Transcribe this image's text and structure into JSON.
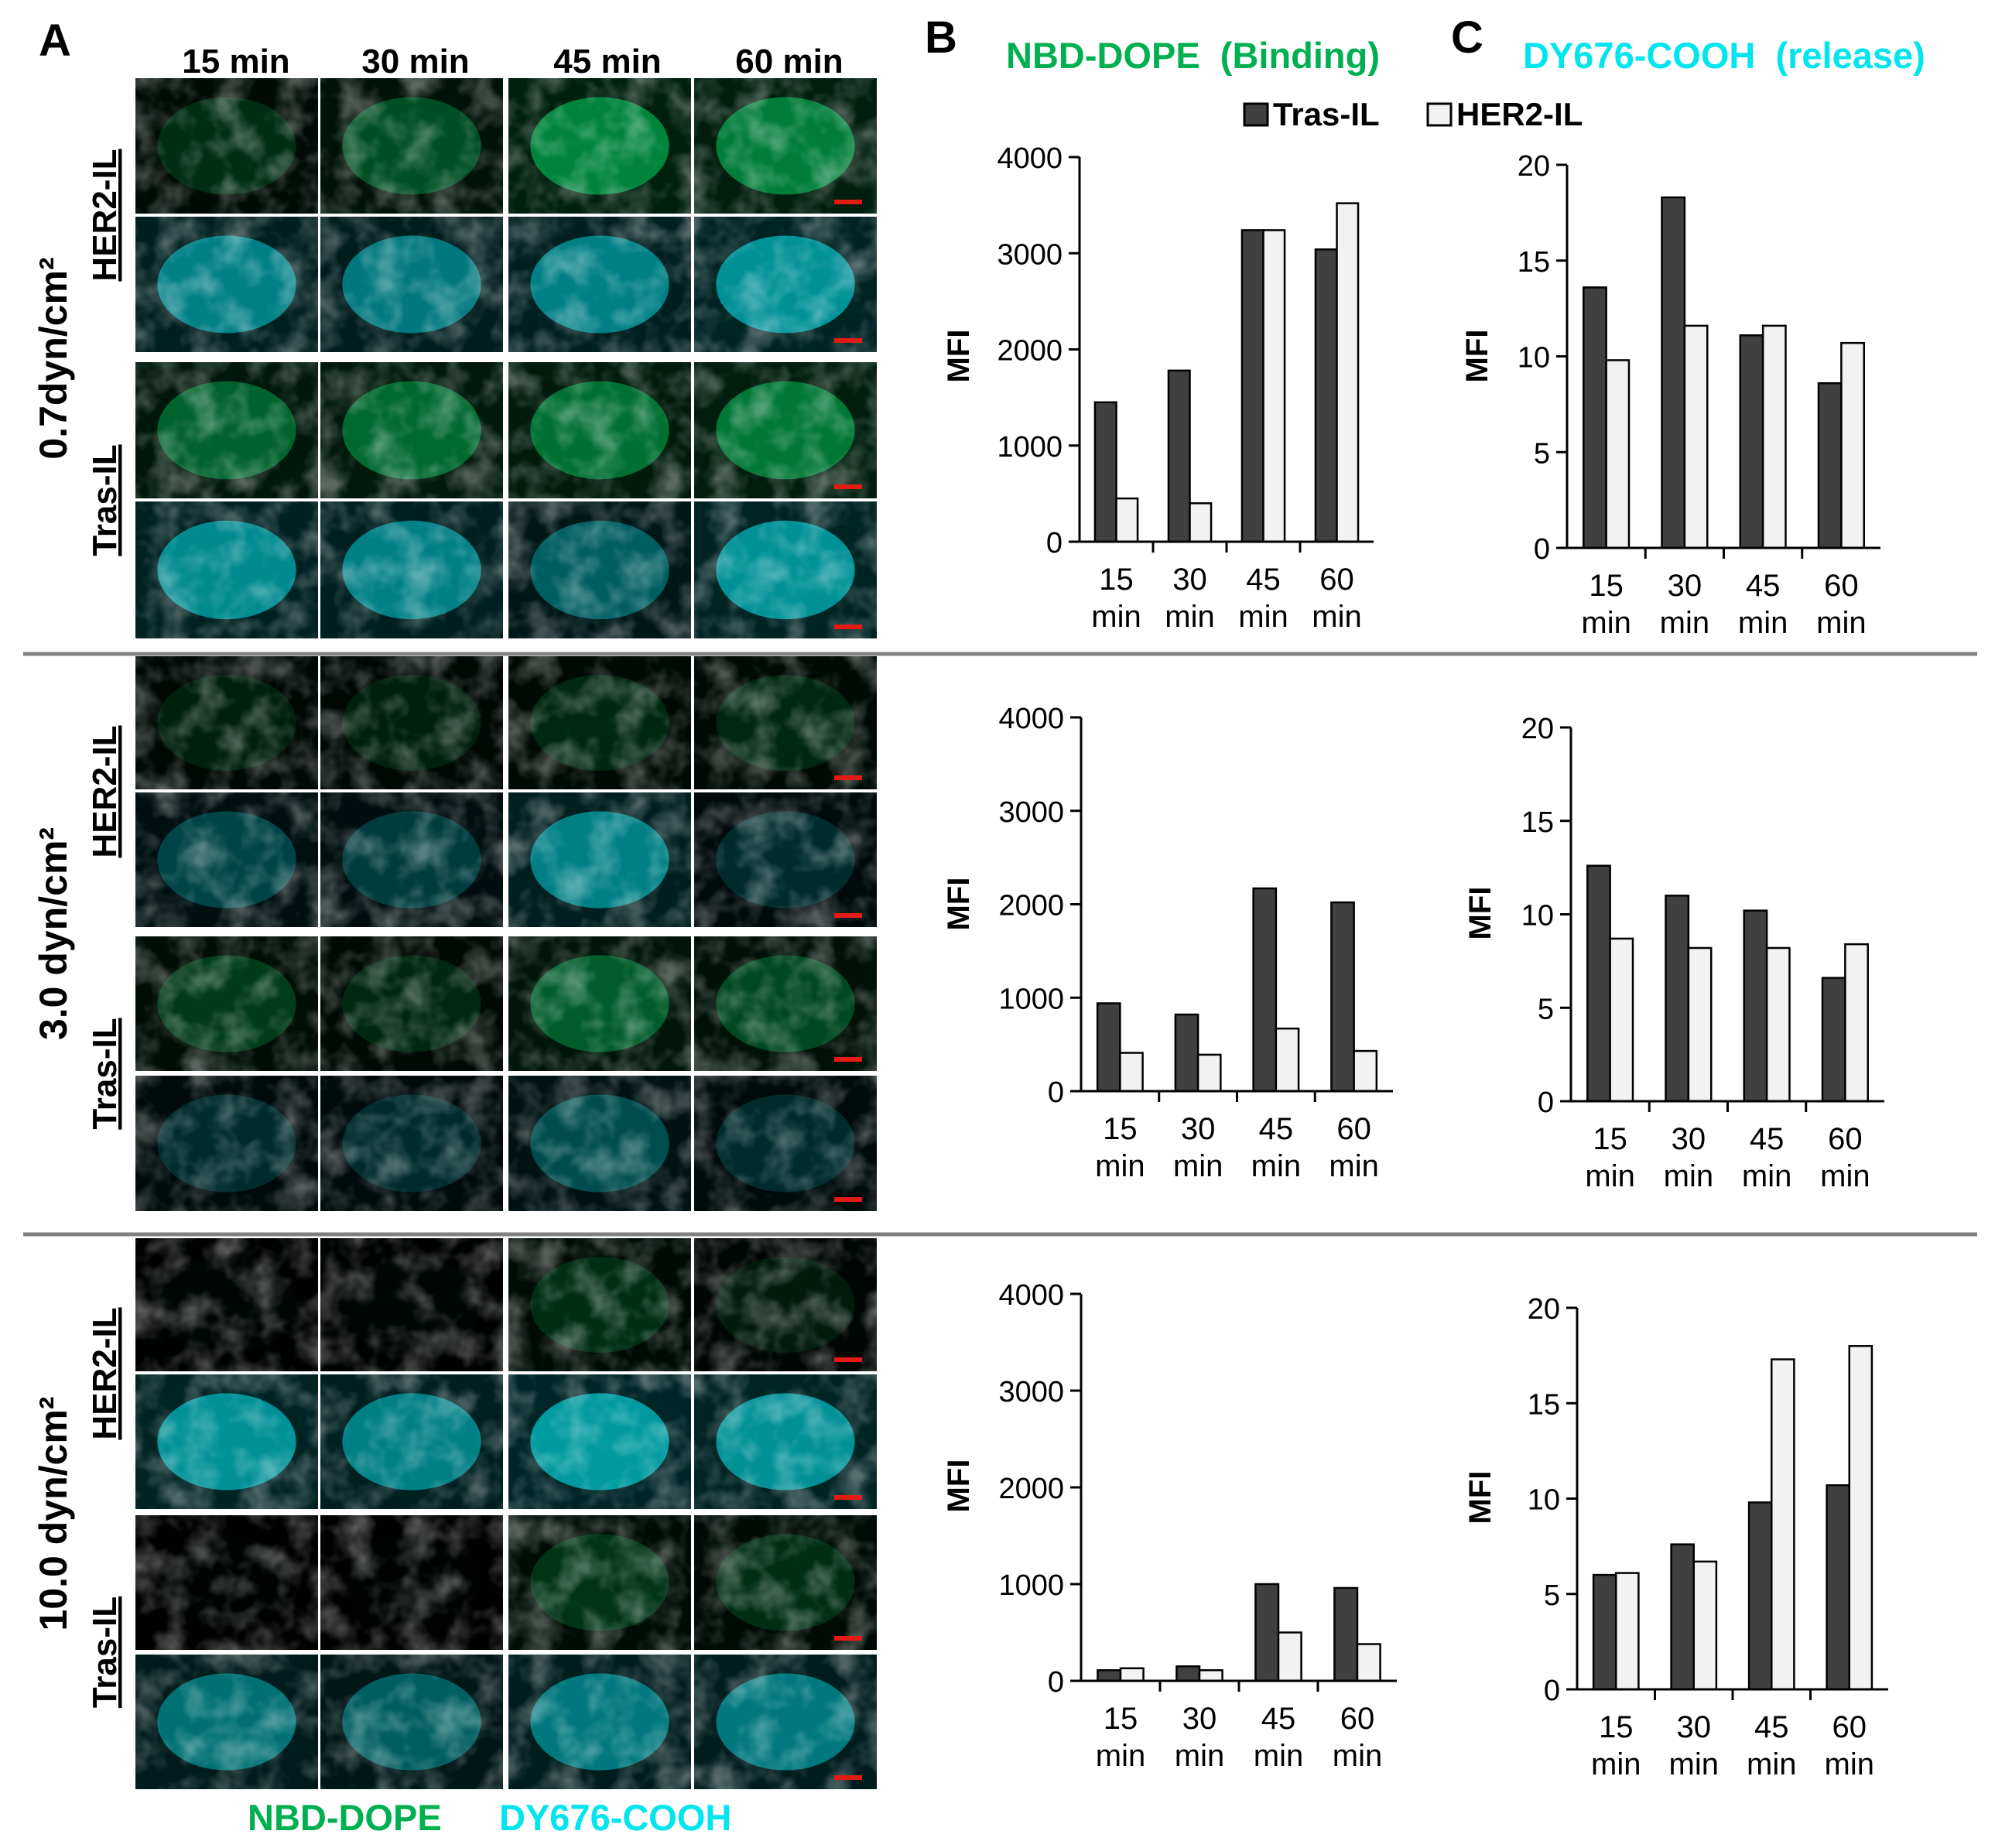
{
  "colors": {
    "nbd": "#00b050",
    "dy": "#00e5ee",
    "tras_bar": "#404040",
    "her2_bar": "#f2f2f2",
    "separator": "#808080",
    "scale_bar": "#e41b13"
  },
  "panel_letters": {
    "a": "A",
    "b": "B",
    "c": "C"
  },
  "panel_a": {
    "time_headers": [
      "15 min",
      "30 min",
      "45 min",
      "60 min"
    ],
    "conditions": [
      {
        "shear": "0.7dyn/cm²",
        "groups": [
          "HER2-IL",
          "Tras-IL"
        ]
      },
      {
        "shear": "3.0 dyn/cm²",
        "groups": [
          "HER2-IL",
          "Tras-IL"
        ]
      },
      {
        "shear": "10.0 dyn/cm²",
        "groups": [
          "HER2-IL",
          "Tras-IL"
        ]
      }
    ],
    "micrograph_intensity": [
      {
        "her2_nbd": [
          0.35,
          0.6,
          1.0,
          0.95
        ],
        "her2_dy": [
          0.75,
          0.7,
          0.75,
          0.85
        ],
        "tras_nbd": [
          0.75,
          0.8,
          0.85,
          0.9
        ],
        "tras_dy": [
          0.8,
          0.75,
          0.55,
          0.85
        ]
      },
      {
        "her2_nbd": [
          0.25,
          0.25,
          0.3,
          0.3
        ],
        "her2_dy": [
          0.4,
          0.35,
          0.75,
          0.25
        ],
        "tras_nbd": [
          0.45,
          0.3,
          0.7,
          0.55
        ],
        "tras_dy": [
          0.25,
          0.25,
          0.45,
          0.25
        ]
      },
      {
        "her2_nbd": [
          0.05,
          0.05,
          0.35,
          0.2
        ],
        "her2_dy": [
          0.85,
          0.75,
          0.9,
          0.85
        ],
        "tras_nbd": [
          0.02,
          0.02,
          0.4,
          0.35
        ],
        "tras_dy": [
          0.65,
          0.55,
          0.7,
          0.7
        ]
      }
    ],
    "footer": {
      "nbd": "NBD-DOPE",
      "dy": "DY676-COOH"
    }
  },
  "panel_b_title": "NBD-DOPE  (Binding)",
  "panel_c_title": "DY676-COOH  (release)",
  "legend": {
    "tras": "Tras-IL",
    "her2": "HER2-IL"
  },
  "chart_data": [
    {
      "type": "bar",
      "panel": "B",
      "row": "0.7dyn/cm²",
      "ylabel": "MFI",
      "ylim": [
        0,
        4000
      ],
      "yticks": [
        0,
        1000,
        2000,
        3000,
        4000
      ],
      "categories": [
        [
          "15",
          "min"
        ],
        [
          "30",
          "min"
        ],
        [
          "45",
          "min"
        ],
        [
          "60",
          "min"
        ]
      ],
      "series": [
        {
          "name": "Tras-IL",
          "values": [
            1450,
            1780,
            3240,
            3040
          ]
        },
        {
          "name": "HER2-IL",
          "values": [
            450,
            400,
            3240,
            3520
          ]
        }
      ]
    },
    {
      "type": "bar",
      "panel": "C",
      "row": "0.7dyn/cm²",
      "ylabel": "MFI",
      "ylim": [
        0,
        20
      ],
      "yticks": [
        0,
        5,
        10,
        15,
        20
      ],
      "categories": [
        [
          "15",
          "min"
        ],
        [
          "30",
          "min"
        ],
        [
          "45",
          "min"
        ],
        [
          "60",
          "min"
        ]
      ],
      "series": [
        {
          "name": "Tras-IL",
          "values": [
            13.6,
            18.3,
            11.1,
            8.6
          ]
        },
        {
          "name": "HER2-IL",
          "values": [
            9.8,
            11.6,
            11.6,
            10.7
          ]
        }
      ]
    },
    {
      "type": "bar",
      "panel": "B",
      "row": "3.0 dyn/cm²",
      "ylabel": "MFI",
      "ylim": [
        0,
        4000
      ],
      "yticks": [
        0,
        1000,
        2000,
        3000,
        4000
      ],
      "categories": [
        [
          "15",
          "min"
        ],
        [
          "30",
          "min"
        ],
        [
          "45",
          "min"
        ],
        [
          "60",
          "min"
        ]
      ],
      "series": [
        {
          "name": "Tras-IL",
          "values": [
            940,
            820,
            2170,
            2020
          ]
        },
        {
          "name": "HER2-IL",
          "values": [
            410,
            390,
            670,
            430
          ]
        }
      ]
    },
    {
      "type": "bar",
      "panel": "C",
      "row": "3.0 dyn/cm²",
      "ylabel": "MFI",
      "ylim": [
        0,
        20
      ],
      "yticks": [
        0,
        5,
        10,
        15,
        20
      ],
      "categories": [
        [
          "15",
          "min"
        ],
        [
          "30",
          "min"
        ],
        [
          "45",
          "min"
        ],
        [
          "60",
          "min"
        ]
      ],
      "series": [
        {
          "name": "Tras-IL",
          "values": [
            12.6,
            11.0,
            10.2,
            6.6
          ]
        },
        {
          "name": "HER2-IL",
          "values": [
            8.7,
            8.2,
            8.2,
            8.4
          ]
        }
      ]
    },
    {
      "type": "bar",
      "panel": "B",
      "row": "10.0 dyn/cm²",
      "ylabel": "MFI",
      "ylim": [
        0,
        4000
      ],
      "yticks": [
        0,
        1000,
        2000,
        3000,
        4000
      ],
      "categories": [
        [
          "15",
          "min"
        ],
        [
          "30",
          "min"
        ],
        [
          "45",
          "min"
        ],
        [
          "60",
          "min"
        ]
      ],
      "series": [
        {
          "name": "Tras-IL",
          "values": [
            110,
            150,
            1000,
            960
          ]
        },
        {
          "name": "HER2-IL",
          "values": [
            130,
            110,
            500,
            380
          ]
        }
      ]
    },
    {
      "type": "bar",
      "panel": "C",
      "row": "10.0 dyn/cm²",
      "ylabel": "MFI",
      "ylim": [
        0,
        20
      ],
      "yticks": [
        0,
        5,
        10,
        15,
        20
      ],
      "categories": [
        [
          "15",
          "min"
        ],
        [
          "30",
          "min"
        ],
        [
          "45",
          "min"
        ],
        [
          "60",
          "min"
        ]
      ],
      "series": [
        {
          "name": "Tras-IL",
          "values": [
            6.0,
            7.6,
            9.8,
            10.7
          ]
        },
        {
          "name": "HER2-IL",
          "values": [
            6.1,
            6.7,
            17.3,
            18.0
          ]
        }
      ]
    }
  ]
}
